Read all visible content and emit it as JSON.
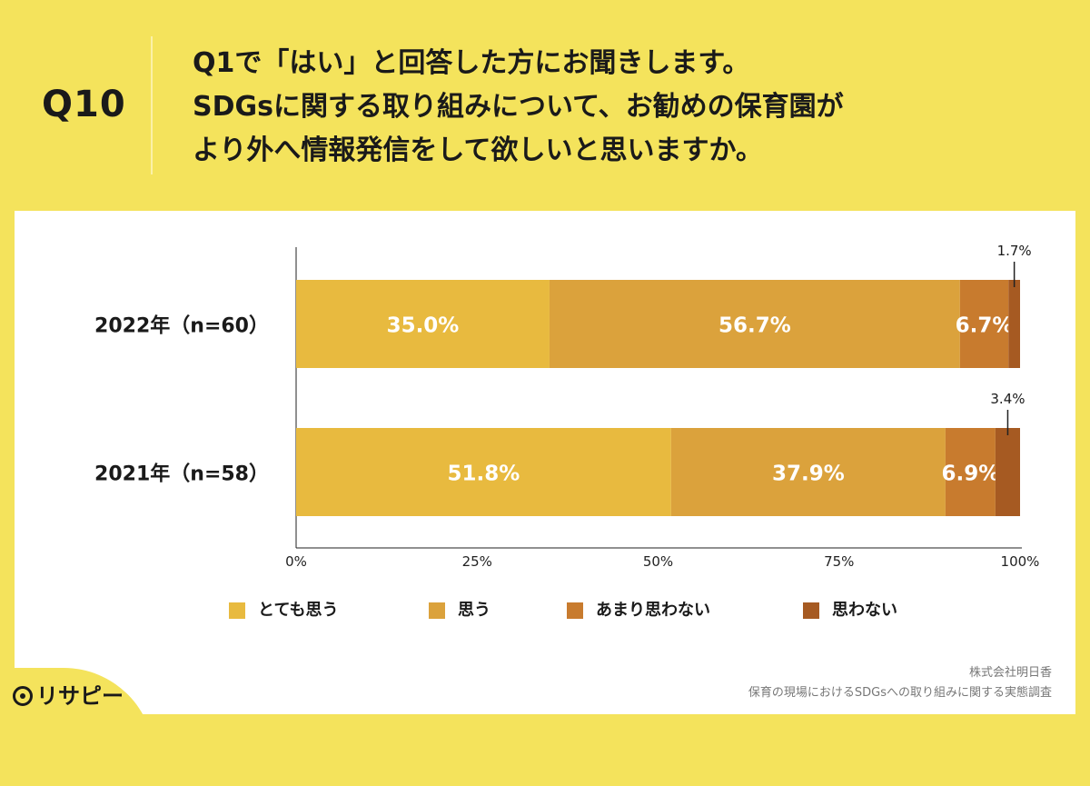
{
  "header": {
    "qnum": "Q10",
    "lines": [
      "Q1で「はい」と回答した方にお聞きします。",
      "SDGsに関する取り組みについて、お勧めの保育園が",
      "より外へ情報発信をして欲しいと思いますか。"
    ]
  },
  "chart_data": {
    "type": "bar",
    "orientation": "horizontal",
    "stacked": true,
    "categories": [
      "2022年（n=60）",
      "2021年（n=58）"
    ],
    "series": [
      {
        "name": "とても思う",
        "values": [
          35.0,
          51.8
        ],
        "color": "#E8BA3F"
      },
      {
        "name": "思う",
        "values": [
          56.7,
          37.9
        ],
        "color": "#DBA23C"
      },
      {
        "name": "あまり思わない",
        "values": [
          6.7,
          6.9
        ],
        "color": "#C87B2E"
      },
      {
        "name": "思わない",
        "values": [
          1.7,
          3.4
        ],
        "color": "#A65A22"
      }
    ],
    "value_labels": [
      [
        "35.0%",
        "56.7%",
        "6.7%",
        "1.7%"
      ],
      [
        "51.8%",
        "37.9%",
        "6.9%",
        "3.4%"
      ]
    ],
    "xlim": [
      0,
      100
    ],
    "x_ticks": [
      0,
      25,
      50,
      75,
      100
    ],
    "x_tick_labels": [
      "0%",
      "25%",
      "50%",
      "75%",
      "100%"
    ],
    "legend_position": "bottom"
  },
  "footer": {
    "company": "株式会社明日香",
    "survey": "保育の現場におけるSDGsへの取り組みに関する実態調査"
  },
  "logo": {
    "text": "リサピー"
  }
}
